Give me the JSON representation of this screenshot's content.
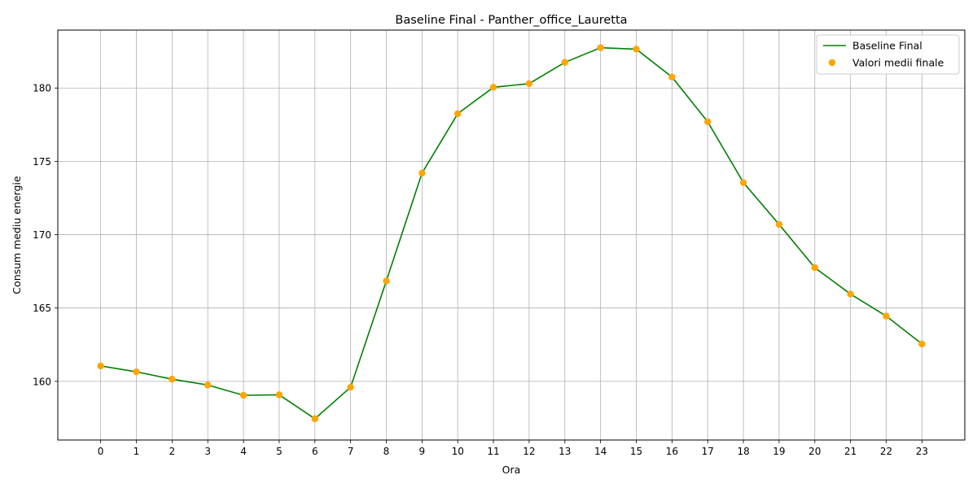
{
  "chart_data": {
    "type": "line",
    "title": "Baseline Final - Panther_office_Lauretta",
    "xlabel": "Ora",
    "ylabel": "Consum mediu energie",
    "x": [
      0,
      1,
      2,
      3,
      4,
      5,
      6,
      7,
      8,
      9,
      10,
      11,
      12,
      13,
      14,
      15,
      16,
      17,
      18,
      19,
      20,
      21,
      22,
      23
    ],
    "xlim": [
      -1.2,
      24.2
    ],
    "ylim": [
      156.0,
      183.95
    ],
    "yticks": [
      160,
      165,
      170,
      175,
      180
    ],
    "grid": true,
    "legend_position": "top-right",
    "series": [
      {
        "name": "Baseline Final",
        "kind": "line",
        "color": "#008000",
        "values": [
          161.05,
          160.65,
          160.15,
          159.75,
          159.05,
          159.08,
          157.45,
          159.6,
          166.85,
          174.2,
          178.25,
          180.05,
          180.3,
          181.75,
          182.75,
          182.65,
          180.75,
          177.7,
          173.55,
          170.7,
          167.75,
          165.95,
          164.45,
          162.55
        ]
      },
      {
        "name": "Valori medii finale",
        "kind": "scatter",
        "color": "#FFA500",
        "values": [
          161.05,
          160.65,
          160.15,
          159.75,
          159.05,
          159.08,
          157.45,
          159.6,
          166.85,
          174.2,
          178.25,
          180.05,
          180.3,
          181.75,
          182.75,
          182.65,
          180.75,
          177.7,
          173.55,
          170.7,
          167.75,
          165.95,
          164.45,
          162.55
        ]
      }
    ]
  }
}
